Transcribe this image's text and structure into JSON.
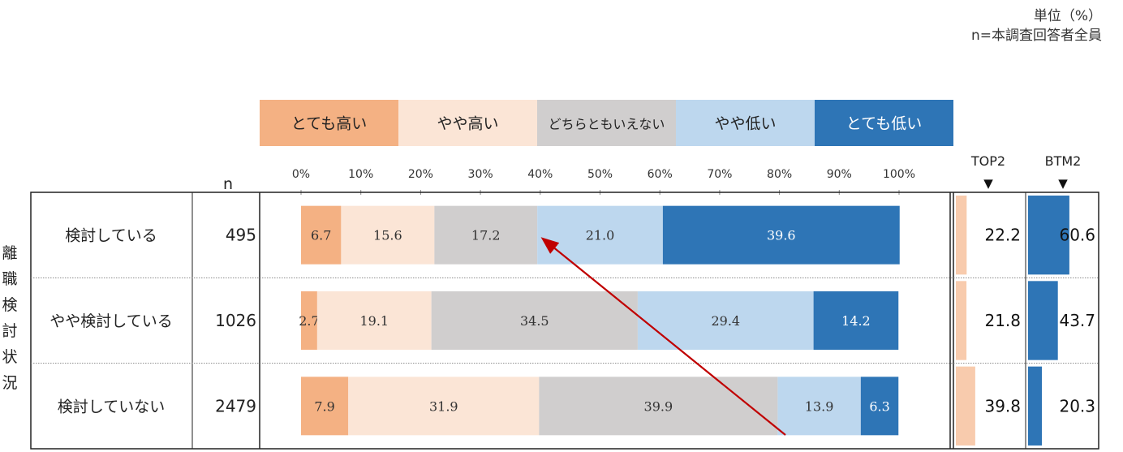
{
  "note": {
    "unit": "単位（%）",
    "base": "n=本調査回答者全員"
  },
  "colors": {
    "very_high": "#f4b183",
    "high": "#fbe5d6",
    "neutral": "#d0cece",
    "low": "#bdd7ee",
    "very_low": "#2e75b6",
    "arrow": "#c00000"
  },
  "chart_data": {
    "type": "bar",
    "orientation": "horizontal",
    "stacked": true,
    "legend": [
      "とても高い",
      "やや高い",
      "どちらともいえない",
      "やや低い",
      "とても低い"
    ],
    "legend_position": "top",
    "x_ticks": [
      "0%",
      "10%",
      "20%",
      "30%",
      "40%",
      "50%",
      "60%",
      "70%",
      "80%",
      "90%",
      "100%"
    ],
    "xlim": [
      0,
      100
    ],
    "row_group_label": "離職検討状況",
    "n_header": "n",
    "summary_headers": [
      "TOP2",
      "BTM2"
    ],
    "summary_marker": "▼",
    "categories": [
      "検討している",
      "やや検討している",
      "検討していない"
    ],
    "n": [
      495,
      1026,
      2479
    ],
    "series": [
      {
        "name": "とても高い",
        "values": [
          6.7,
          2.7,
          7.9
        ]
      },
      {
        "name": "やや高い",
        "values": [
          15.6,
          19.1,
          31.9
        ]
      },
      {
        "name": "どちらともいえない",
        "values": [
          17.2,
          34.5,
          39.9
        ]
      },
      {
        "name": "やや低い",
        "values": [
          21.0,
          29.4,
          13.9
        ]
      },
      {
        "name": "とても低い",
        "values": [
          39.6,
          14.2,
          6.3
        ]
      }
    ],
    "top2": [
      22.2,
      21.8,
      39.8
    ],
    "btm2": [
      60.6,
      43.7,
      20.3
    ],
    "annotation": "arrow from (80%, 検討していない) to (40%, 検討している)"
  }
}
